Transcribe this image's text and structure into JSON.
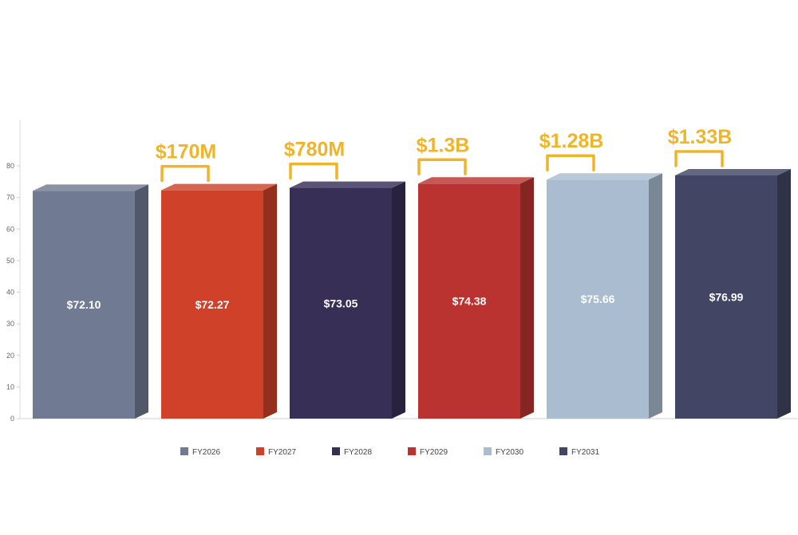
{
  "chart_data": {
    "type": "bar",
    "title": "",
    "xlabel": "",
    "ylabel": "",
    "ylim": [
      0,
      80
    ],
    "yticks": [
      0,
      10,
      20,
      30,
      40,
      50,
      60,
      70,
      80
    ],
    "grid": false,
    "legend_position": "bottom",
    "categories": [
      "FY2026",
      "FY2027",
      "FY2028",
      "FY2029",
      "FY2030",
      "FY2031"
    ],
    "values": [
      72.1,
      72.27,
      73.05,
      74.38,
      75.66,
      76.99
    ],
    "data_labels": [
      "$72.10",
      "$72.27",
      "$73.05",
      "$74.38",
      "$75.66",
      "$76.99"
    ],
    "colors": [
      "#717a93",
      "#cf4128",
      "#372f56",
      "#bb3330",
      "#aabdd0",
      "#424664"
    ],
    "annotations": [
      "$170M",
      "$780M",
      "$1.3B",
      "$1.28B",
      "$1.33B"
    ],
    "annotation_color": "#f0b429"
  }
}
